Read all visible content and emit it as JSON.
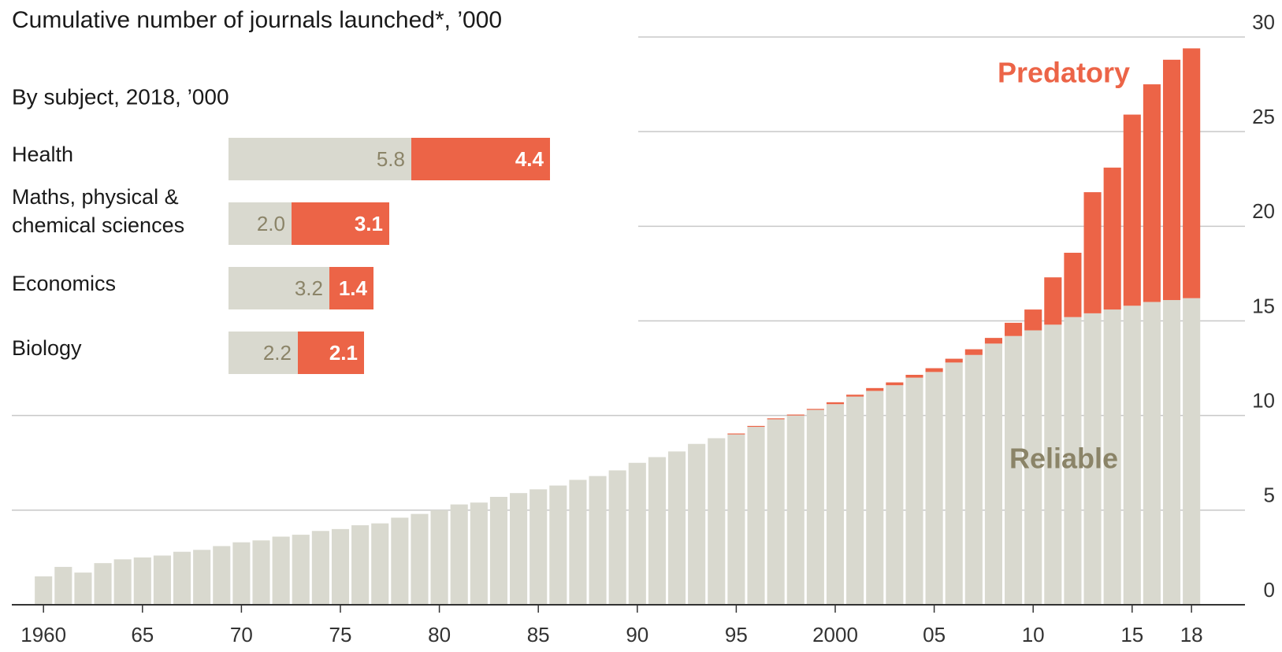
{
  "chart_data": [
    {
      "type": "stacked-bar",
      "title": "Cumulative number of journals launched*, ’000",
      "x": [
        1960,
        1961,
        1962,
        1963,
        1964,
        1965,
        1966,
        1967,
        1968,
        1969,
        1970,
        1971,
        1972,
        1973,
        1974,
        1975,
        1976,
        1977,
        1978,
        1979,
        1980,
        1981,
        1982,
        1983,
        1984,
        1985,
        1986,
        1987,
        1988,
        1989,
        1990,
        1991,
        1992,
        1993,
        1994,
        1995,
        1996,
        1997,
        1998,
        1999,
        2000,
        2001,
        2002,
        2003,
        2004,
        2005,
        2006,
        2007,
        2008,
        2009,
        2010,
        2011,
        2012,
        2013,
        2014,
        2015,
        2016,
        2017,
        2018
      ],
      "series": [
        {
          "name": "Reliable",
          "color": "#d9d9cf",
          "values": [
            1.5,
            2.0,
            1.7,
            2.2,
            2.4,
            2.5,
            2.6,
            2.8,
            2.9,
            3.1,
            3.3,
            3.4,
            3.6,
            3.7,
            3.9,
            4.0,
            4.2,
            4.3,
            4.6,
            4.8,
            5.0,
            5.3,
            5.4,
            5.7,
            5.9,
            6.1,
            6.3,
            6.6,
            6.8,
            7.1,
            7.5,
            7.8,
            8.1,
            8.5,
            8.8,
            9.0,
            9.4,
            9.8,
            10.0,
            10.3,
            10.6,
            11.0,
            11.3,
            11.6,
            12.0,
            12.3,
            12.8,
            13.2,
            13.8,
            14.2,
            14.5,
            14.8,
            15.2,
            15.4,
            15.6,
            15.8,
            16.0,
            16.1,
            16.2
          ]
        },
        {
          "name": "Predatory",
          "color": "#ec6447",
          "values": [
            0,
            0,
            0,
            0,
            0,
            0,
            0,
            0,
            0,
            0,
            0,
            0,
            0,
            0,
            0,
            0,
            0,
            0,
            0,
            0,
            0,
            0,
            0,
            0,
            0,
            0,
            0,
            0,
            0,
            0,
            0,
            0,
            0,
            0,
            0,
            0.05,
            0.05,
            0.05,
            0.05,
            0.05,
            0.1,
            0.1,
            0.15,
            0.15,
            0.15,
            0.2,
            0.2,
            0.3,
            0.3,
            0.7,
            1.1,
            2.5,
            3.4,
            6.4,
            7.5,
            10.1,
            11.5,
            12.7,
            13.2
          ]
        }
      ],
      "xlim": [
        1958.4,
        2020.9
      ],
      "xticks": [
        1960,
        {
          "value": 1965,
          "label": "65"
        },
        {
          "value": 1970,
          "label": "70"
        },
        {
          "value": 1975,
          "label": "75"
        },
        {
          "value": 1980,
          "label": "80"
        },
        {
          "value": 1985,
          "label": "85"
        },
        {
          "value": 1990,
          "label": "90"
        },
        {
          "value": 1995,
          "label": "95"
        },
        2000,
        {
          "value": 2005,
          "label": "05"
        },
        {
          "value": 2010,
          "label": "10"
        },
        {
          "value": 2015,
          "label": "15"
        },
        {
          "value": 2018,
          "label": "18"
        }
      ],
      "ylim": [
        0,
        30
      ],
      "yticks": [
        0,
        5,
        10,
        15,
        20,
        25,
        30
      ],
      "grid": true
    },
    {
      "type": "stacked-barh",
      "title": "By subject, 2018, ’000",
      "categories": [
        "Health",
        "Maths, physical & chemical sciences",
        "Economics",
        "Biology"
      ],
      "series": [
        {
          "color": "#d9d9cf",
          "label_color": "#8b8468",
          "values": [
            5.8,
            2.0,
            3.2,
            2.2
          ],
          "value_labels": [
            "5.8",
            "2.0",
            "3.2",
            "2.2"
          ]
        },
        {
          "color": "#ec6447",
          "label_color": "#ffffff",
          "values": [
            4.4,
            3.1,
            1.4,
            2.1
          ],
          "value_labels": [
            "4.4",
            "3.1",
            "1.4",
            "2.1"
          ]
        }
      ]
    }
  ]
}
